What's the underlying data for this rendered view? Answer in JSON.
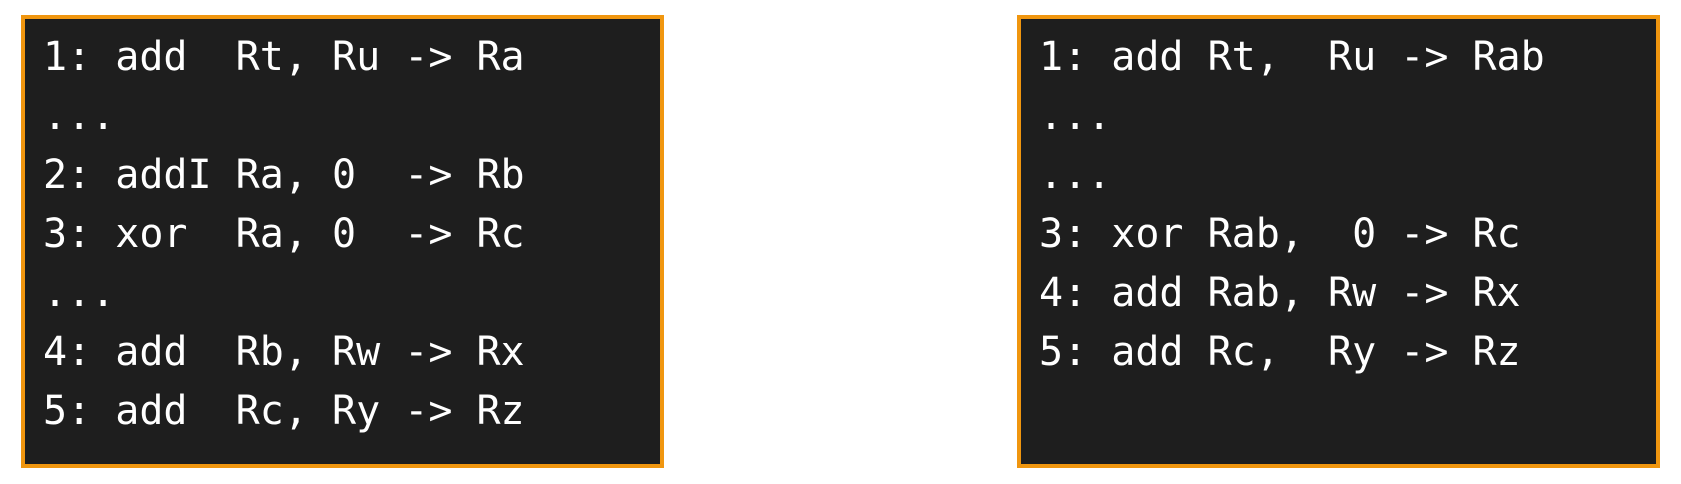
{
  "left_panel": {
    "lines": [
      "1: add  Rt, Ru -> Ra",
      "...",
      "2: addI Ra, 0  -> Rb",
      "3: xor  Ra, 0  -> Rc",
      "...",
      "4: add  Rb, Rw -> Rx",
      "5: add  Rc, Ry -> Rz"
    ]
  },
  "right_panel": {
    "lines": [
      "1: add Rt,  Ru -> Rab",
      "...",
      "...",
      "3: xor Rab,  0 -> Rc",
      "4: add Rab, Rw -> Rx",
      "5: add Rc,  Ry -> Rz"
    ]
  },
  "colors": {
    "border": "#f0960f",
    "background": "#1e1e1e",
    "text": "#ffffff"
  }
}
